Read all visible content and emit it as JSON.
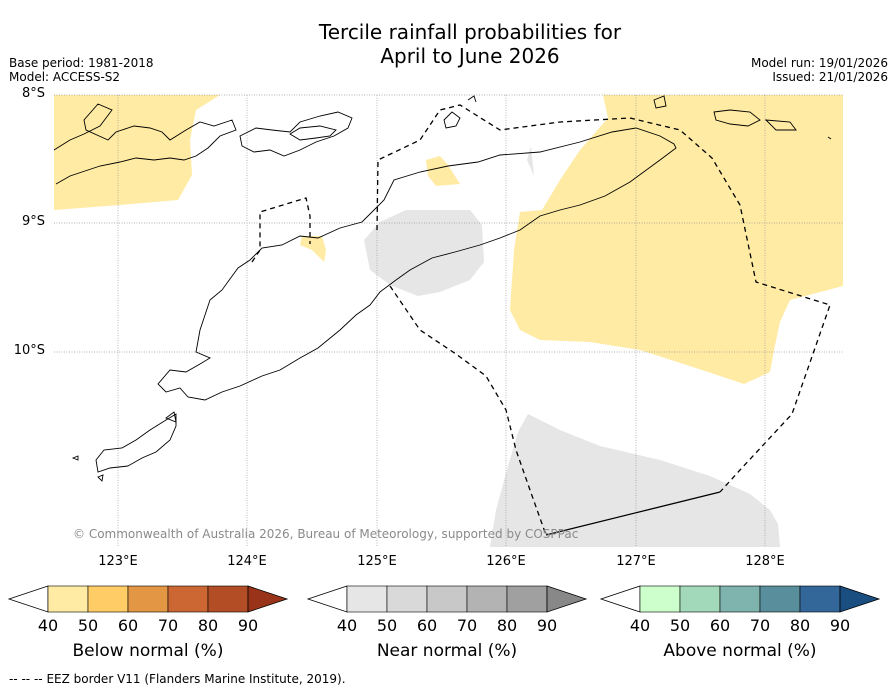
{
  "title_line1": "Tercile rainfall probabilities for",
  "title_line2": "April to June 2026",
  "base_period": "Base period: 1981-2018",
  "model": "Model: ACCESS-S2",
  "model_run": "Model run: 19/01/2026",
  "issued": "Issued: 21/01/2026",
  "lat_labels": [
    "8°S",
    "9°S",
    "10°S"
  ],
  "lon_labels": [
    "123°E",
    "124°E",
    "125°E",
    "126°E",
    "127°E",
    "128°E"
  ],
  "copyright": "© Commonwealth of Australia 2026, Bureau of Meteorology, supported by COSPPac",
  "colorbars": [
    {
      "label": "Below normal (%)",
      "ticks": [
        "40",
        "50",
        "60",
        "70",
        "80",
        "90"
      ],
      "colors": [
        "#ffffff",
        "#ffeba3",
        "#ffcc66",
        "#e39744",
        "#cc6633",
        "#b34d26",
        "#993319"
      ]
    },
    {
      "label": "Near normal (%)",
      "ticks": [
        "40",
        "50",
        "60",
        "70",
        "80",
        "90"
      ],
      "colors": [
        "#ffffff",
        "#e6e6e6",
        "#d9d9d9",
        "#c8c8c8",
        "#b3b3b3",
        "#a0a0a0",
        "#888888"
      ]
    },
    {
      "label": "Above normal (%)",
      "ticks": [
        "40",
        "50",
        "60",
        "70",
        "80",
        "90"
      ],
      "colors": [
        "#ffffff",
        "#ccffcc",
        "#a2d9bb",
        "#7fb3ad",
        "#598f9c",
        "#336699",
        "#1a4d80"
      ]
    }
  ],
  "legend_symbol": "-- -- --",
  "footnote": "EEZ border V11 (Flanders Marine Institute, 2019).",
  "colors": {
    "below_fill": "#ffeba3",
    "near_fill": "#e6e6e6",
    "grid": "#999999"
  }
}
